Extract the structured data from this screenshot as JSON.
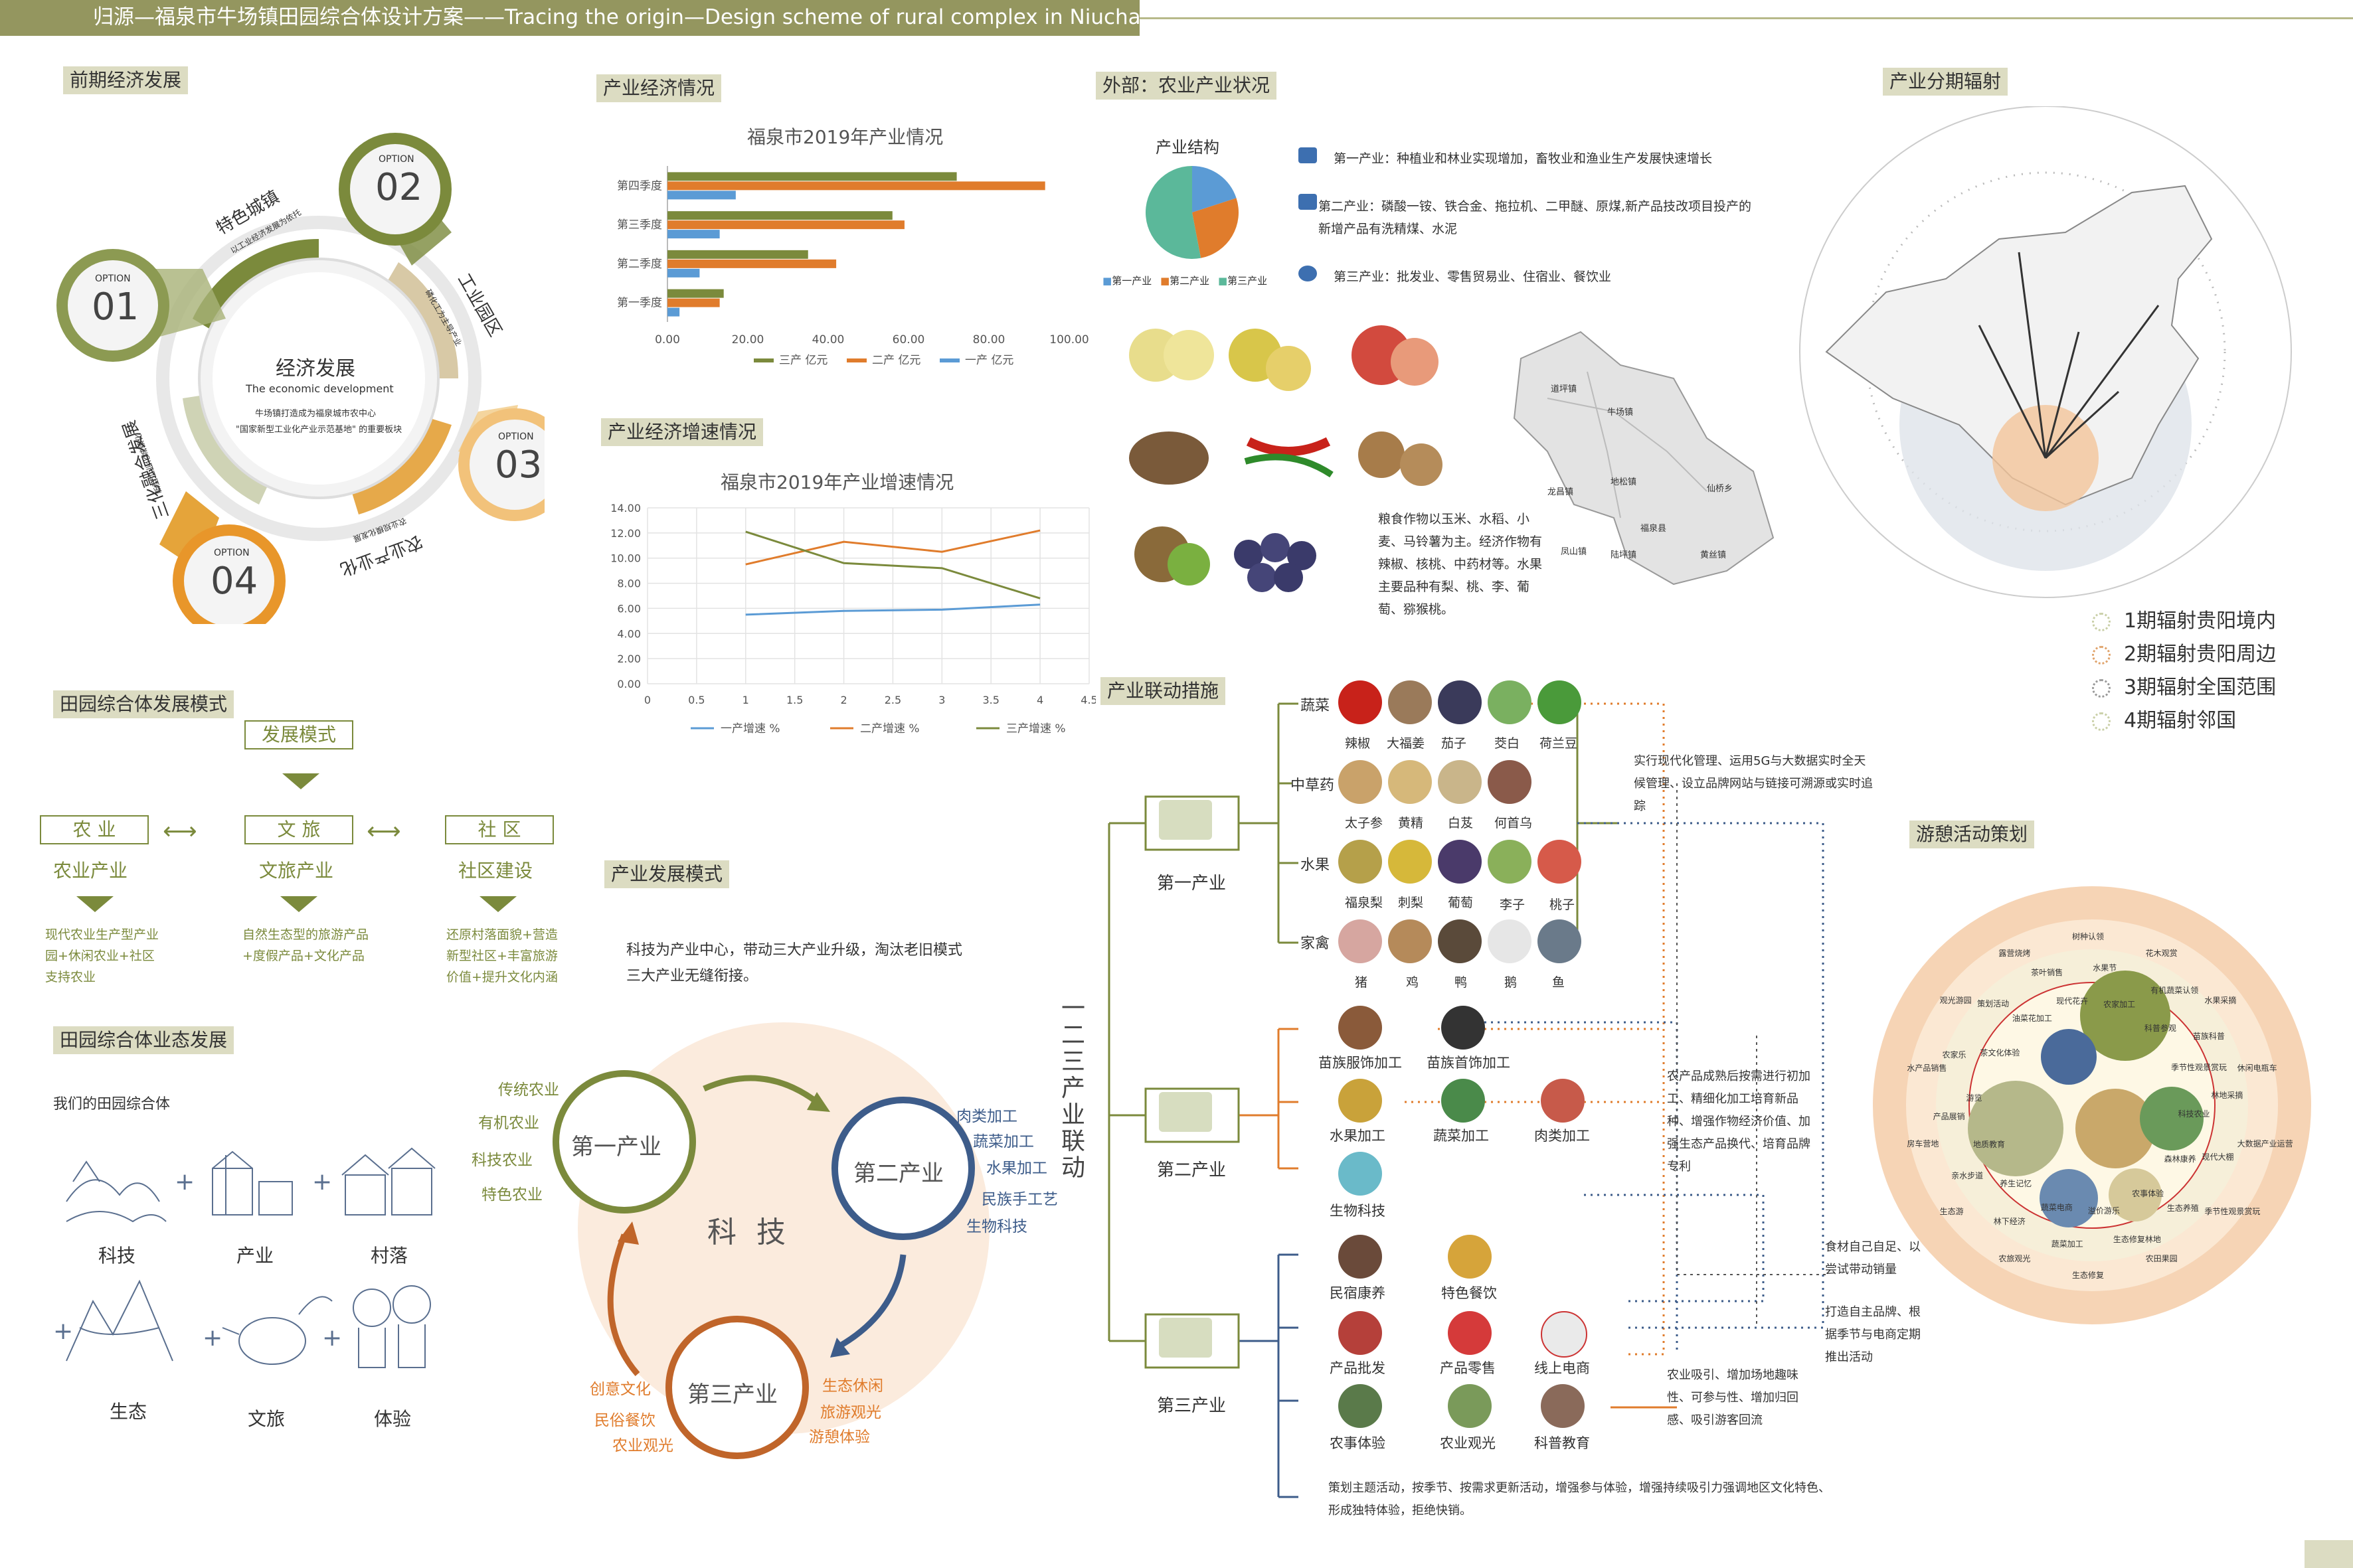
{
  "title": "归源—福泉市牛场镇田园综合体设计方案——Tracing the origin—Design scheme of rural complex in Niuchang Town, Fuquan City",
  "sections": {
    "early_econ": "前期经济发展",
    "industry_econ": "产业经济情况",
    "industry_growth": "产业经济增速情况",
    "outside_agri": "外部：农业产业状况",
    "radiation": "产业分期辐射",
    "complex_mode": "田园综合体发展模式",
    "industry_mode": "产业发展模式",
    "complex_form": "田园综合体业态发展",
    "linkage": "产业联动措施",
    "leisure": "游憩活动策划"
  },
  "econ_wheel": {
    "center_title": "经济发展",
    "center_sub": "The economic development",
    "center_desc1": "牛场镇打造成为福泉城市农中心",
    "center_desc2": "\"国家新型工业化产业示范基地\" 的重要板块",
    "options": [
      {
        "label": "OPTION",
        "num": "01"
      },
      {
        "label": "OPTION",
        "num": "02"
      },
      {
        "label": "OPTION",
        "num": "03"
      },
      {
        "label": "OPTION",
        "num": "04"
      }
    ],
    "arc_labels": [
      "特色城镇",
      "工业园区",
      "农业产业化",
      "三化融合发展"
    ],
    "arc_sub": [
      "以工业经济发展为依托",
      "磷化工为主导产业",
      "农业规模化发展",
      "新型工业化城镇化"
    ]
  },
  "chart_data": [
    {
      "type": "bar",
      "title": "福泉市2019年产业情况",
      "categories": [
        "第一季度",
        "第二季度",
        "第三季度",
        "第四季度"
      ],
      "series": [
        {
          "name": "三产 亿元",
          "color": "#7b8a3c",
          "values": [
            14,
            35,
            56,
            72
          ]
        },
        {
          "name": "二产 亿元",
          "color": "#e07c2c",
          "values": [
            13,
            42,
            59,
            94
          ]
        },
        {
          "name": "一产 亿元",
          "color": "#5b9bd5",
          "values": [
            3,
            8,
            13,
            17
          ]
        }
      ],
      "xlim": [
        0,
        100
      ],
      "xticks": [
        "0.00",
        "20.00",
        "40.00",
        "60.00",
        "80.00",
        "100.00"
      ]
    },
    {
      "type": "line",
      "title": "福泉市2019年产业增速情况",
      "x": [
        1,
        2,
        3,
        4
      ],
      "series": [
        {
          "name": "一产增速 %",
          "color": "#5b9bd5",
          "values": [
            5.5,
            5.8,
            5.9,
            6.3
          ]
        },
        {
          "name": "二产增速 %",
          "color": "#e07c2c",
          "values": [
            9.5,
            11.3,
            10.5,
            12.2
          ]
        },
        {
          "name": "三产增速 %",
          "color": "#7b8a3c",
          "values": [
            12.1,
            9.6,
            9.2,
            6.8
          ]
        }
      ],
      "xlim": [
        0,
        4.5
      ],
      "ylim": [
        0,
        14
      ],
      "xticks": [
        "0",
        "0.5",
        "1",
        "1.5",
        "2",
        "2.5",
        "3",
        "3.5",
        "4",
        "4.5"
      ],
      "yticks": [
        "0.00",
        "2.00",
        "4.00",
        "6.00",
        "8.00",
        "10.00",
        "12.00",
        "14.00"
      ]
    },
    {
      "type": "pie",
      "title": "产业结构",
      "slices": [
        {
          "name": "第一产业",
          "value": 20,
          "color": "#5b9bd5"
        },
        {
          "name": "第二产业",
          "value": 27,
          "color": "#e07c2c"
        },
        {
          "name": "第三产业",
          "value": 53,
          "color": "#5bb89a"
        }
      ]
    }
  ],
  "agri": {
    "items": [
      "第一产业：种植业和林业实现增加，畜牧业和渔业生产发展快速增长",
      "第二产业：磷酸一铵、铁合金、拖拉机、二甲醚、原煤,新产品技改项目投产的新增产品有洗精煤、水泥",
      "第三产业：批发业、零售贸易业、住宿业、餐饮业"
    ],
    "crop_text": "粮食作物以玉米、水稻、小麦、马铃薯为主。经济作物有辣椒、核桃、中药材等。水果主要品种有梨、桃、李、葡萄、猕猴桃。",
    "map_labels": [
      "道坪镇",
      "牛场镇",
      "龙昌镇",
      "地松镇",
      "仙桥乡",
      "福泉县",
      "陆坪镇",
      "黄丝镇",
      "凤山镇"
    ]
  },
  "radiation_legend": [
    "1期辐射贵阳境内",
    "2期辐射贵阳周边",
    "3期辐射全国范围",
    "4期辐射邻国"
  ],
  "mode": {
    "top": "发展模式",
    "boxes": [
      "农 业",
      "文 旅",
      "社 区"
    ],
    "subs": [
      "农业产业",
      "文旅产业",
      "社区建设"
    ],
    "descs": [
      "现代农业生产型产业园+休闲农业+社区支持农业",
      "自然生态型的旅游产品+度假产品+文化产品",
      "还原村落面貌+营造新型社区+丰富旅游价值+提升文化内涵"
    ]
  },
  "form": {
    "intro": "我们的田园综合体",
    "items": [
      "科技",
      "产业",
      "村落",
      "生态",
      "文旅",
      "体验"
    ]
  },
  "ind_mode": {
    "desc1": "科技为产业中心，带动三大产业升级，淘汰老旧模式",
    "desc2": "三大产业无缝衔接。",
    "center": "科 技",
    "p1": "第一产业",
    "p2": "第二产业",
    "p3": "第三产业",
    "p1_items": [
      "传统农业",
      "有机农业",
      "科技农业",
      "特色农业"
    ],
    "p2_items": [
      "肉类加工",
      "蔬菜加工",
      "水果加工",
      "民族手工艺",
      "生物科技"
    ],
    "p3_left": [
      "创意文化",
      "民俗餐饮",
      "农业观光"
    ],
    "p3_right": [
      "生态休闲",
      "旅游观光",
      "游憩体验"
    ],
    "vertical": "一二三产业联动"
  },
  "linkage": {
    "first": "第一产业",
    "second": "第二产业",
    "third": "第三产业",
    "cats": [
      "蔬菜",
      "中草药",
      "水果",
      "家禽"
    ],
    "veg": [
      "辣椒",
      "大福姜",
      "茄子",
      "茭白",
      "荷兰豆"
    ],
    "herb": [
      "太子参",
      "黄精",
      "白芨",
      "何首乌"
    ],
    "fruit": [
      "福泉梨",
      "刺梨",
      "葡萄",
      "李子",
      "桃子"
    ],
    "poultry": [
      "猪",
      "鸡",
      "鸭",
      "鹅",
      "鱼"
    ],
    "second_items": [
      "苗族服饰加工",
      "苗族首饰加工",
      "水果加工",
      "蔬菜加工",
      "肉类加工",
      "生物科技"
    ],
    "third_items": [
      "民宿康养",
      "特色餐饮",
      "产品批发",
      "产品零售",
      "线上电商",
      "农事体验",
      "农业观光",
      "科普教育"
    ],
    "note1": "实行现代化管理、运用5G与大数据实时全天候管理、设立品牌网站与链接可溯源或实时追踪",
    "note2": "农产品成熟后按需进行初加工、精细化加工培育新品种、增强作物经济价值、加强生态产品换代、培育品牌专利",
    "note3": "食材自己自足、以尝试带动销量",
    "note4": "打造自主品牌、根据季节与电商定期推出活动",
    "note5": "农业吸引、增加场地趣味性、可参与性、增加归回感、吸引游客回流",
    "note6": "策划主题活动，按季节、按需求更新活动，增强参与体验，增强持续吸引力强调地区文化特色、形成独特体验，拒绝快销。"
  },
  "leisure": {
    "labels": [
      "树种认领",
      "水果节",
      "农家加工",
      "花木观赏",
      "有机蔬菜认领",
      "科普参观",
      "水果采摘",
      "苗族科普",
      "季节性观景赏玩",
      "休闲电瓶车",
      "林地采摘",
      "科技农业",
      "大数据产业运营",
      "现代大棚",
      "森林康养",
      "季节性观景赏玩",
      "生态养殖",
      "农事体验",
      "农田果园",
      "生态修复林地",
      "溢价游乐",
      "生态修复",
      "蔬菜加工",
      "蔬菜电商",
      "农旅观光",
      "林下经济",
      "养生记忆",
      "生态游",
      "亲水步道",
      "地质教育",
      "房车营地",
      "产品展销",
      "游览",
      "水产品销售",
      "农家乐",
      "茶文化体验",
      "观光游园",
      "策划活动",
      "油菜花加工",
      "露营烧烤",
      "茶叶销售",
      "现代花卉"
    ]
  }
}
